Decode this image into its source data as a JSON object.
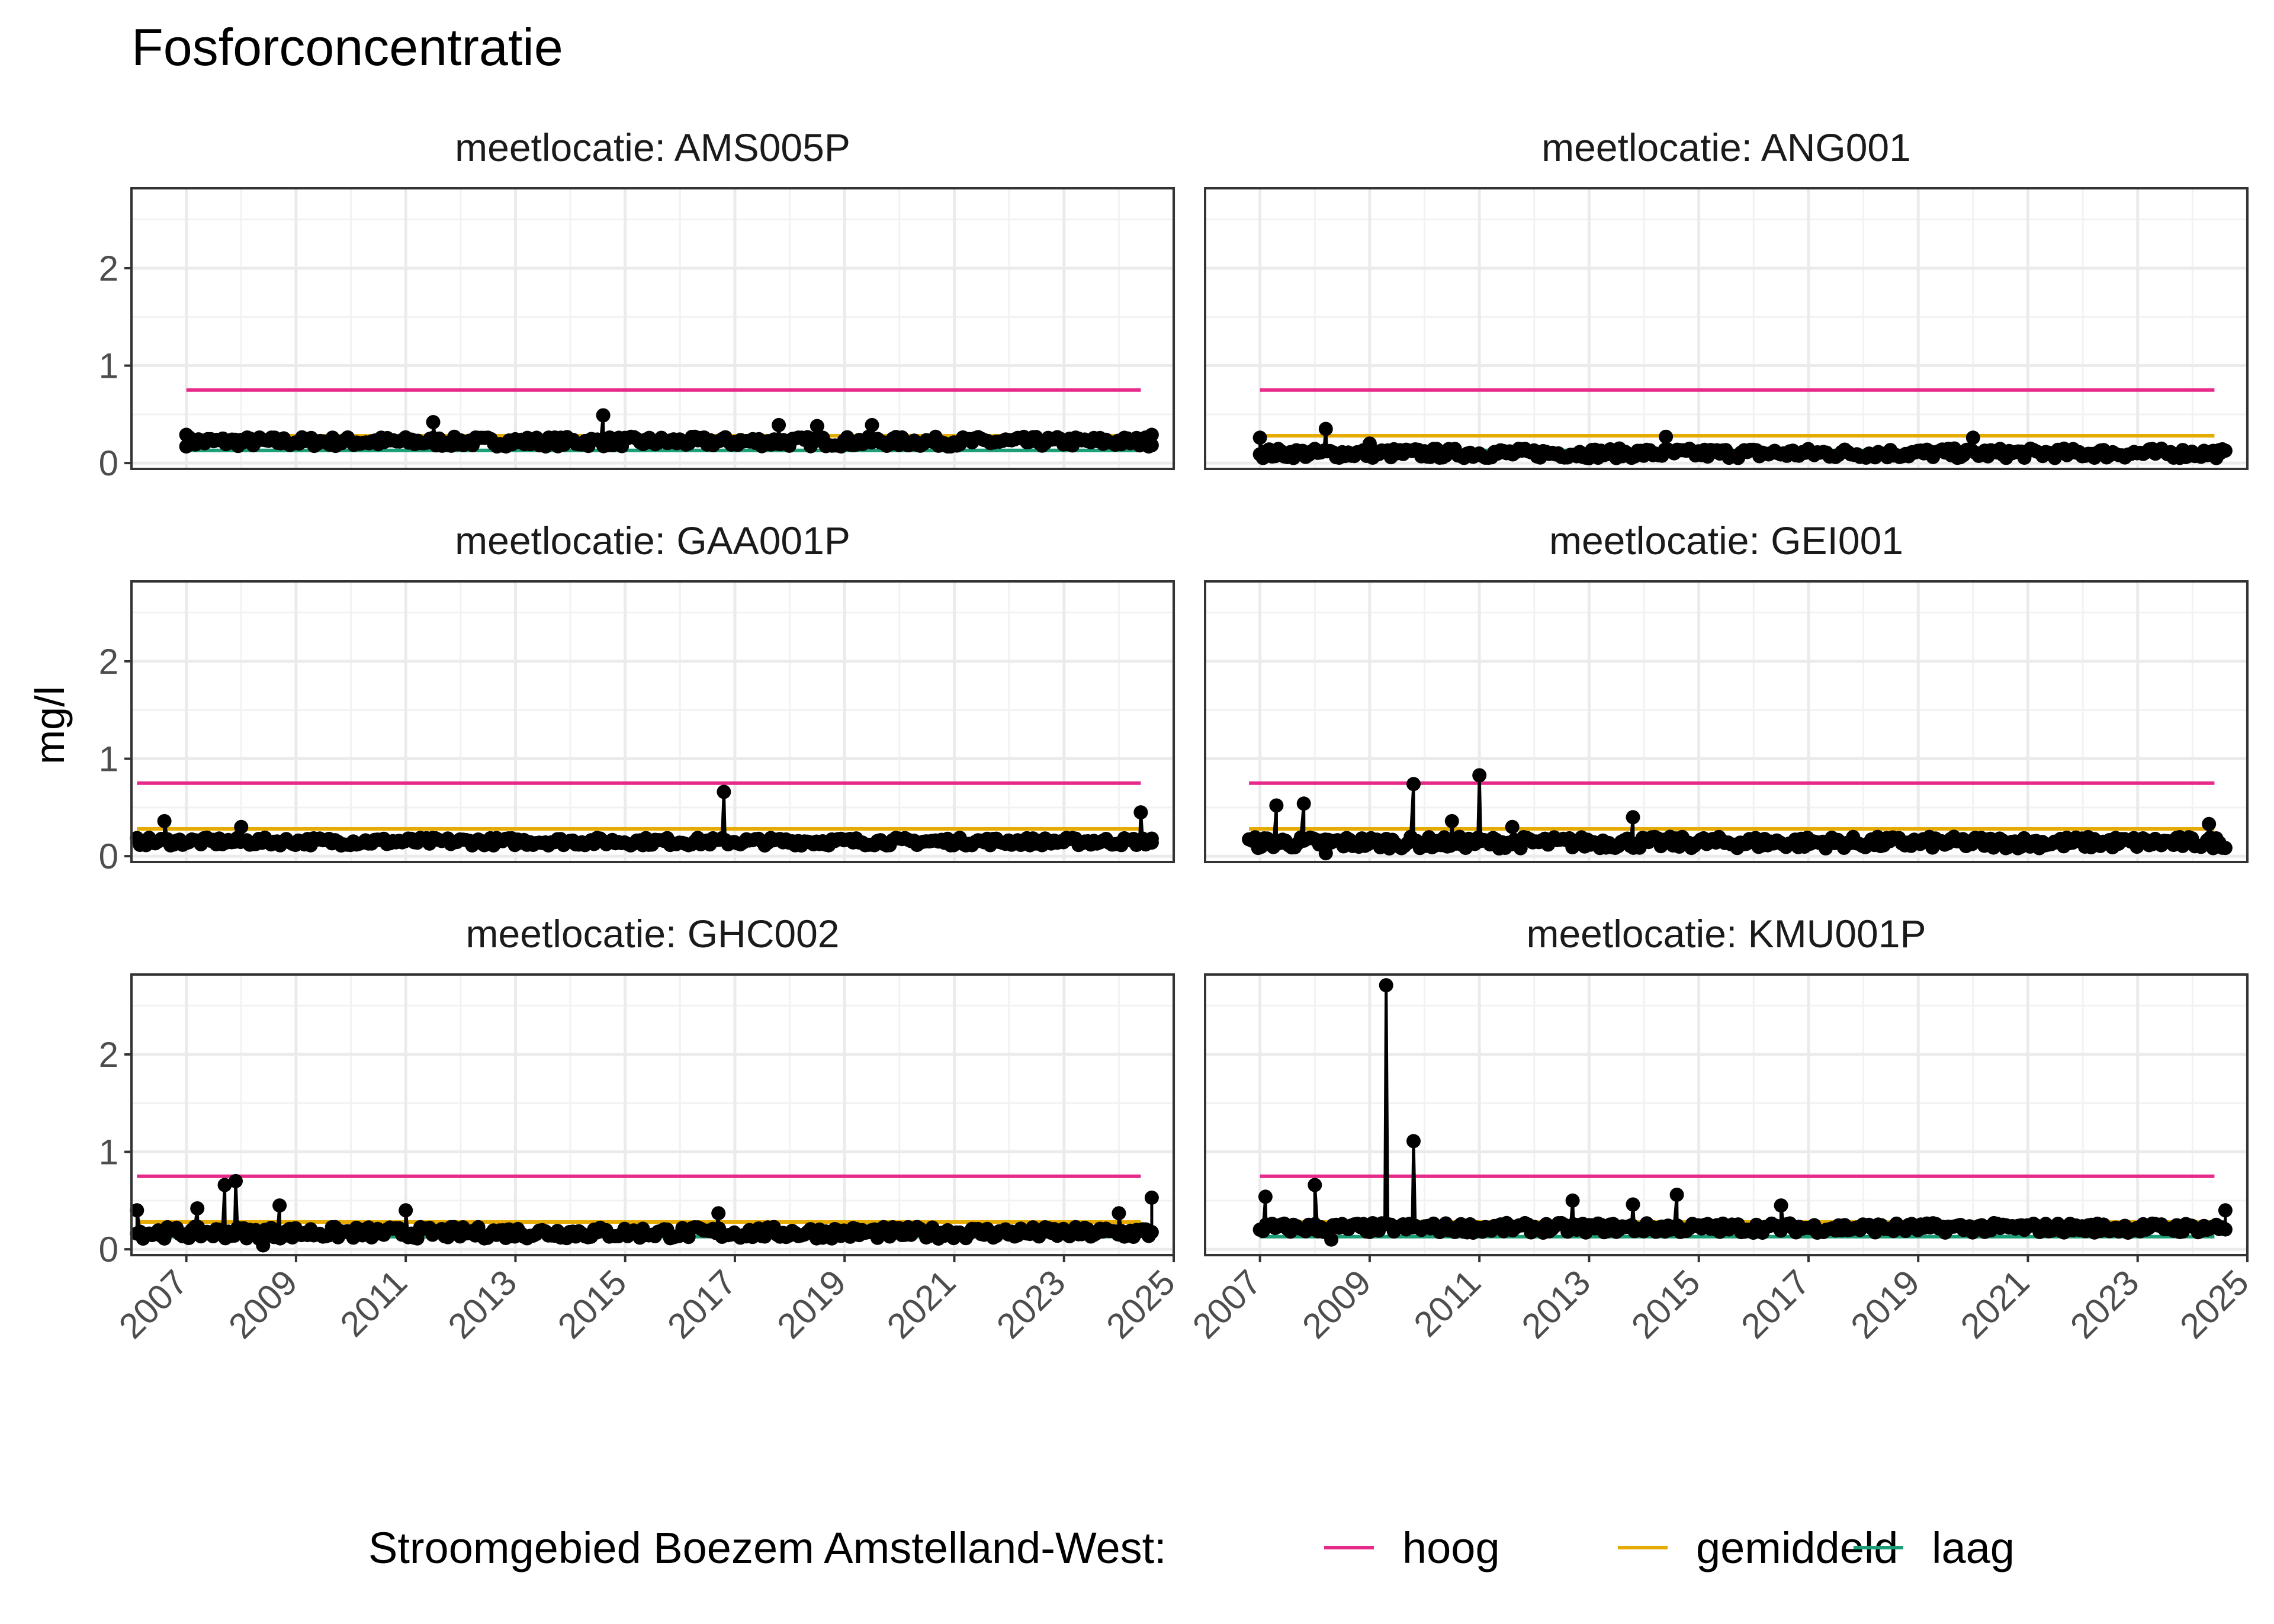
{
  "chart_data": {
    "type": "line",
    "title": "Fosforconcentratie",
    "ylabel": "mg/l",
    "xlabel": "",
    "xlim": [
      2006.0,
      2025.0
    ],
    "ylim": [
      -0.06,
      2.82
    ],
    "x_ticks": [
      "2007",
      "2009",
      "2011",
      "2013",
      "2015",
      "2017",
      "2019",
      "2021",
      "2023",
      "2025"
    ],
    "y_ticks": [
      "0",
      "1",
      "2"
    ],
    "grid": true,
    "legend": {
      "title": "Stroomgebied Boezem Amstelland-West:",
      "position": "bottom",
      "entries": [
        {
          "name": "hoog",
          "color": "#e7298a"
        },
        {
          "name": "gemiddeld",
          "color": "#e6ab02"
        },
        {
          "name": "laag",
          "color": "#1b9e77"
        }
      ]
    },
    "reference_lines": {
      "hoog": 0.75,
      "gemiddeld": 0.28,
      "laag": 0.13
    },
    "panels": [
      {
        "label": "meetlocatie: AMS005P",
        "start": 2007.0,
        "end": 2024.6,
        "ref_start": 2007.0,
        "ref_end": 2024.4,
        "base": 0.22,
        "noise": 0.05,
        "spikes": [
          [
            2007.0,
            0.29
          ],
          [
            2011.5,
            0.42
          ],
          [
            2014.6,
            0.49
          ],
          [
            2017.8,
            0.39
          ],
          [
            2018.5,
            0.38
          ],
          [
            2019.5,
            0.39
          ],
          [
            2024.6,
            0.29
          ]
        ]
      },
      {
        "label": "meetlocatie: ANG001",
        "start": 2007.0,
        "end": 2024.6,
        "ref_start": 2007.0,
        "ref_end": 2024.4,
        "base": 0.1,
        "noise": 0.05,
        "spikes": [
          [
            2007.0,
            0.26
          ],
          [
            2008.2,
            0.35
          ],
          [
            2009.0,
            0.2
          ],
          [
            2014.4,
            0.27
          ],
          [
            2020.0,
            0.26
          ],
          [
            2024.5,
            0.1
          ]
        ]
      },
      {
        "label": "meetlocatie: GAA001P",
        "start": 2006.1,
        "end": 2024.6,
        "ref_start": 2006.1,
        "ref_end": 2024.4,
        "base": 0.15,
        "noise": 0.04,
        "spikes": [
          [
            2006.6,
            0.36
          ],
          [
            2008.0,
            0.3
          ],
          [
            2016.8,
            0.66
          ],
          [
            2024.4,
            0.45
          ],
          [
            2024.6,
            0.18
          ]
        ]
      },
      {
        "label": "meetlocatie: GEI001",
        "start": 2006.8,
        "end": 2024.6,
        "ref_start": 2006.8,
        "ref_end": 2024.4,
        "base": 0.14,
        "noise": 0.06,
        "spikes": [
          [
            2007.3,
            0.52
          ],
          [
            2007.8,
            0.54
          ],
          [
            2008.2,
            0.03
          ],
          [
            2009.8,
            0.74
          ],
          [
            2010.5,
            0.36
          ],
          [
            2011.0,
            0.83
          ],
          [
            2011.6,
            0.3
          ],
          [
            2013.8,
            0.4
          ],
          [
            2024.3,
            0.33
          ]
        ]
      },
      {
        "label": "meetlocatie: GHC002",
        "start": 2006.1,
        "end": 2024.6,
        "ref_start": 2006.1,
        "ref_end": 2024.4,
        "base": 0.17,
        "noise": 0.06,
        "spikes": [
          [
            2006.1,
            0.4
          ],
          [
            2007.2,
            0.42
          ],
          [
            2007.7,
            0.66
          ],
          [
            2007.9,
            0.7
          ],
          [
            2008.4,
            0.04
          ],
          [
            2008.7,
            0.45
          ],
          [
            2011.0,
            0.4
          ],
          [
            2016.7,
            0.37
          ],
          [
            2024.0,
            0.37
          ],
          [
            2024.6,
            0.53
          ]
        ]
      },
      {
        "label": "meetlocatie: KMU001P",
        "start": 2007.0,
        "end": 2024.6,
        "ref_start": 2007.0,
        "ref_end": 2024.4,
        "base": 0.22,
        "noise": 0.05,
        "spikes": [
          [
            2007.1,
            0.54
          ],
          [
            2008.0,
            0.66
          ],
          [
            2008.3,
            0.1
          ],
          [
            2009.3,
            2.71
          ],
          [
            2009.8,
            1.11
          ],
          [
            2012.7,
            0.5
          ],
          [
            2013.8,
            0.46
          ],
          [
            2014.6,
            0.56
          ],
          [
            2016.5,
            0.45
          ],
          [
            2024.6,
            0.4
          ]
        ]
      }
    ]
  }
}
